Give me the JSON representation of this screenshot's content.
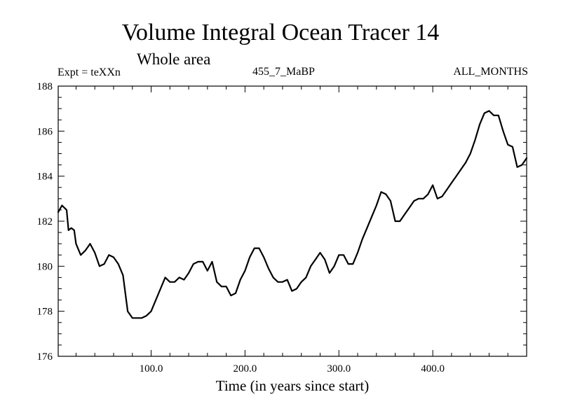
{
  "chart_data": {
    "type": "line",
    "title": "Volume Integral Ocean Tracer 14",
    "subtitle": "Whole area",
    "info": {
      "experiment": "Expt = teXXn",
      "period": "455_7_MaBP",
      "months": "ALL_MONTHS"
    },
    "xlabel": "Time (in years since start)",
    "ylabel": "",
    "xlim": [
      1,
      500
    ],
    "ylim": [
      176,
      188
    ],
    "xticks": [
      100,
      200,
      300,
      400
    ],
    "xtick_labels": [
      "100.0",
      "200.0",
      "300.0",
      "400.0"
    ],
    "yticks": [
      176,
      178,
      180,
      182,
      184,
      186,
      188
    ],
    "ytick_labels": [
      "176",
      "178",
      "180",
      "182",
      "184",
      "186",
      "188"
    ],
    "series": [
      {
        "name": "Tracer 14",
        "x": [
          1,
          5,
          10,
          12,
          15,
          18,
          20,
          25,
          30,
          35,
          40,
          45,
          50,
          55,
          60,
          65,
          70,
          75,
          80,
          85,
          90,
          95,
          100,
          105,
          110,
          115,
          120,
          125,
          130,
          135,
          140,
          145,
          150,
          155,
          160,
          165,
          170,
          175,
          180,
          185,
          190,
          195,
          200,
          205,
          210,
          215,
          220,
          225,
          230,
          235,
          240,
          245,
          250,
          255,
          260,
          265,
          270,
          275,
          280,
          285,
          290,
          295,
          300,
          305,
          310,
          315,
          320,
          325,
          330,
          335,
          340,
          345,
          350,
          355,
          360,
          365,
          370,
          375,
          380,
          385,
          390,
          395,
          400,
          405,
          410,
          415,
          420,
          425,
          430,
          435,
          440,
          445,
          450,
          455,
          460,
          465,
          470,
          475,
          480,
          485,
          490,
          495,
          500
        ],
        "values": [
          182.4,
          182.7,
          182.5,
          181.6,
          181.7,
          181.6,
          181.0,
          180.5,
          180.7,
          181.0,
          180.6,
          180.0,
          180.1,
          180.5,
          180.4,
          180.1,
          179.6,
          178.0,
          177.7,
          177.7,
          177.7,
          177.8,
          178.0,
          178.5,
          179.0,
          179.5,
          179.3,
          179.3,
          179.5,
          179.4,
          179.7,
          180.1,
          180.2,
          180.2,
          179.8,
          180.2,
          179.3,
          179.1,
          179.1,
          178.7,
          178.8,
          179.4,
          179.8,
          180.4,
          180.8,
          180.8,
          180.4,
          179.9,
          179.5,
          179.3,
          179.3,
          179.4,
          178.9,
          179.0,
          179.3,
          179.5,
          180.0,
          180.3,
          180.6,
          180.3,
          179.7,
          180.0,
          180.5,
          180.5,
          180.1,
          180.1,
          180.6,
          181.2,
          181.7,
          182.2,
          182.7,
          183.3,
          183.2,
          182.9,
          182.0,
          182.0,
          182.3,
          182.6,
          182.9,
          183.0,
          183.0,
          183.2,
          183.6,
          183.0,
          183.1,
          183.4,
          183.7,
          184.0,
          184.3,
          184.6,
          185.0,
          185.6,
          186.3,
          186.8,
          186.9,
          186.7,
          186.7,
          186.0,
          185.4,
          185.3,
          184.4,
          184.5,
          184.8
        ]
      }
    ]
  }
}
